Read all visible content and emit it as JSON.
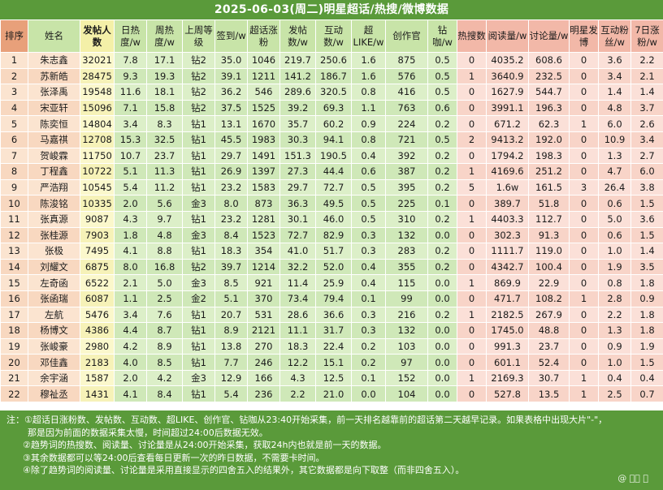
{
  "title": "2025-06-03(周二)明星超话/热搜/微博数据",
  "headers": {
    "rank": "排序",
    "name": "姓名",
    "posters": "发帖人数",
    "day_heat": "日热度/w",
    "week_heat": "周热度/w",
    "last_week_level": "上周等级",
    "checkin": "签到/w",
    "super_gain": "超话涨粉",
    "posts": "发帖数/w",
    "interact": "互动数/w",
    "super_like": "超LIKE/w",
    "creators": "创作官",
    "diamond": "钻咖/w",
    "hot_search": "热搜数",
    "reads": "阅读量/w",
    "discussion": "讨论量/w",
    "star_posts": "明星发博",
    "interact_fans": "互动粉丝/w",
    "seven_day": "7日涨粉/w"
  },
  "rows": [
    [
      "1",
      "朱志鑫",
      "32021",
      "7.8",
      "17.1",
      "钻2",
      "35.0",
      "1046",
      "219.7",
      "250.6",
      "1.6",
      "875",
      "0.5",
      "0",
      "4035.2",
      "608.6",
      "0",
      "3.6",
      "2.2"
    ],
    [
      "2",
      "苏新皓",
      "28475",
      "9.3",
      "19.3",
      "钻2",
      "39.1",
      "1211",
      "141.2",
      "186.7",
      "1.6",
      "576",
      "0.5",
      "1",
      "3640.9",
      "232.5",
      "0",
      "3.4",
      "2.1"
    ],
    [
      "3",
      "张泽禹",
      "19548",
      "11.6",
      "18.1",
      "钻2",
      "36.2",
      "546",
      "289.6",
      "320.5",
      "0.8",
      "416",
      "0.5",
      "0",
      "1627.9",
      "544.7",
      "0",
      "1.4",
      "1.4"
    ],
    [
      "4",
      "宋亚轩",
      "15096",
      "7.1",
      "15.8",
      "钻2",
      "37.5",
      "1525",
      "39.2",
      "69.3",
      "1.1",
      "763",
      "0.6",
      "0",
      "3991.1",
      "196.3",
      "0",
      "4.8",
      "3.7"
    ],
    [
      "5",
      "陈奕恒",
      "14804",
      "3.4",
      "8.3",
      "钻1",
      "13.1",
      "1670",
      "35.7",
      "60.2",
      "0.9",
      "224",
      "0.2",
      "0",
      "671.2",
      "62.3",
      "1",
      "6.0",
      "2.6"
    ],
    [
      "6",
      "马嘉祺",
      "12708",
      "15.3",
      "32.5",
      "钻1",
      "45.5",
      "1983",
      "30.3",
      "94.1",
      "0.8",
      "721",
      "0.5",
      "2",
      "9413.2",
      "192.0",
      "0",
      "10.9",
      "3.4"
    ],
    [
      "7",
      "贺峻霖",
      "11750",
      "10.7",
      "23.7",
      "钻1",
      "29.7",
      "1491",
      "151.3",
      "190.5",
      "0.4",
      "392",
      "0.2",
      "0",
      "1794.2",
      "198.3",
      "0",
      "1.3",
      "2.7"
    ],
    [
      "8",
      "丁程鑫",
      "10722",
      "5.1",
      "11.3",
      "钻1",
      "26.9",
      "1397",
      "27.3",
      "44.4",
      "0.6",
      "387",
      "0.2",
      "1",
      "4169.6",
      "251.2",
      "0",
      "4.7",
      "6.0"
    ],
    [
      "9",
      "严浩翔",
      "10545",
      "5.4",
      "11.2",
      "钻1",
      "23.2",
      "1583",
      "29.7",
      "72.7",
      "0.5",
      "395",
      "0.2",
      "5",
      "1.6w",
      "161.5",
      "3",
      "26.4",
      "3.8"
    ],
    [
      "10",
      "陈浚铭",
      "10335",
      "2.0",
      "5.6",
      "金3",
      "8.0",
      "873",
      "36.3",
      "49.5",
      "0.5",
      "225",
      "0.1",
      "0",
      "389.7",
      "51.8",
      "0",
      "0.6",
      "1.5"
    ],
    [
      "11",
      "张真源",
      "9087",
      "4.3",
      "9.7",
      "钻1",
      "23.2",
      "1281",
      "30.1",
      "46.0",
      "0.5",
      "310",
      "0.2",
      "1",
      "4403.3",
      "112.7",
      "0",
      "5.0",
      "3.6"
    ],
    [
      "12",
      "张桂源",
      "7903",
      "1.8",
      "4.8",
      "金3",
      "8.4",
      "1523",
      "72.7",
      "82.9",
      "0.3",
      "132",
      "0.0",
      "0",
      "302.3",
      "91.3",
      "0",
      "0.6",
      "1.5"
    ],
    [
      "13",
      "张极",
      "7495",
      "4.1",
      "8.8",
      "钻1",
      "18.3",
      "354",
      "41.0",
      "51.7",
      "0.3",
      "283",
      "0.2",
      "0",
      "1111.7",
      "119.0",
      "0",
      "1.0",
      "1.4"
    ],
    [
      "14",
      "刘耀文",
      "6875",
      "8.0",
      "16.8",
      "钻2",
      "39.7",
      "1214",
      "32.2",
      "52.0",
      "0.4",
      "355",
      "0.2",
      "0",
      "4342.7",
      "100.4",
      "0",
      "1.9",
      "3.5"
    ],
    [
      "15",
      "左奇函",
      "6522",
      "2.1",
      "5.0",
      "金3",
      "8.5",
      "921",
      "11.4",
      "25.9",
      "0.4",
      "115",
      "0.0",
      "1",
      "869.9",
      "22.9",
      "0",
      "0.8",
      "1.8"
    ],
    [
      "16",
      "张函瑞",
      "6087",
      "1.1",
      "2.5",
      "金2",
      "5.1",
      "370",
      "73.4",
      "79.4",
      "0.1",
      "99",
      "0.0",
      "0",
      "471.7",
      "108.2",
      "1",
      "2.8",
      "0.9"
    ],
    [
      "17",
      "左航",
      "5476",
      "3.4",
      "7.6",
      "钻1",
      "20.7",
      "531",
      "28.6",
      "36.6",
      "0.3",
      "216",
      "0.2",
      "1",
      "2182.5",
      "267.9",
      "0",
      "2.2",
      "1.8"
    ],
    [
      "18",
      "杨博文",
      "4386",
      "4.4",
      "8.7",
      "钻1",
      "8.9",
      "2121",
      "11.1",
      "31.7",
      "0.3",
      "132",
      "0.0",
      "0",
      "1745.0",
      "48.8",
      "0",
      "1.3",
      "1.8"
    ],
    [
      "19",
      "张峻豪",
      "2980",
      "4.2",
      "8.9",
      "钻1",
      "13.8",
      "270",
      "18.3",
      "22.4",
      "0.2",
      "103",
      "0.0",
      "0",
      "991.3",
      "23.7",
      "0",
      "0.9",
      "1.9"
    ],
    [
      "20",
      "邓佳鑫",
      "2183",
      "4.0",
      "8.5",
      "钻1",
      "7.7",
      "246",
      "12.2",
      "15.1",
      "0.2",
      "97",
      "0.0",
      "0",
      "601.1",
      "52.4",
      "0",
      "1.0",
      "1.5"
    ],
    [
      "21",
      "余宇涵",
      "1587",
      "2.0",
      "4.2",
      "金3",
      "12.9",
      "166",
      "4.3",
      "12.5",
      "0.1",
      "152",
      "0.0",
      "1",
      "2169.3",
      "30.7",
      "1",
      "0.4",
      "0.4"
    ],
    [
      "22",
      "穆祉丞",
      "1431",
      "4.1",
      "8.4",
      "钻1",
      "5.4",
      "236",
      "2.2",
      "21.0",
      "0.0",
      "104",
      "0.0",
      "0",
      "527.8",
      "13.5",
      "1",
      "2.5",
      "0.7"
    ]
  ],
  "highlights": {
    "0": {
      "2": "blue",
      "6": "blue"
    },
    "1": {
      "6": "blue",
      "14": "blue",
      "15": "purple"
    },
    "2": {
      "3": "red"
    },
    "3": {
      "2": "blue",
      "6": "blue"
    },
    "4": {
      "3": "blue",
      "6": "blue"
    },
    "5": {
      "2": "blue",
      "6": "blue"
    },
    "6": {
      "6": "blue"
    },
    "7": {
      "2": "blue",
      "6": "blue",
      "15": "purple",
      "18": "red"
    },
    "8": {
      "2": "blue"
    },
    "9": {
      "2": "blue",
      "3": "blue",
      "6": "blue"
    },
    "10": {
      "6": "blue"
    },
    "11": {
      "2": "blue",
      "3": "blue",
      "6": "blue"
    },
    "12": {
      "6": "blue"
    },
    "13": {
      "2": "blue",
      "6": "blue"
    },
    "14": {
      "2": "blue",
      "3": "blue",
      "6": "blue",
      "14": "blue"
    },
    "15": {
      "3": "blue",
      "6": "blue"
    },
    "16": {
      "2": "blue",
      "6": "blue",
      "15": "purple"
    },
    "17": {
      "2": "blue",
      "6": "blue",
      "15": "blue"
    },
    "18": {
      "2": "blue",
      "6": "blue"
    },
    "19": {
      "2": "blue"
    },
    "20": {
      "2": "blue",
      "14": "purple"
    },
    "21": {
      "2": "blue",
      "14": "blue"
    }
  },
  "notes": [
    "注：①超话日涨粉数、发帖数、互动数、超LIKE、创作官、钻咖从23:40开始采集，前一天排名越靠前的超话第二天越早记录。如果表格中出现大片\"-\"，",
    "那是因为前面的数据采集太慢，时间超过24:00后数据无效。",
    "②趋势词的热搜数、阅读量、讨论量是从24:00开始采集，获取24h内也就是前一天的数据。",
    "③其余数据都可以等24:00后查看每日更新一次的昨日数据，不需要卡时间。",
    "④除了趋势词的阅读量、讨论量是采用直接显示的四舍五入的结果外，其它数据都是向下取整（而非四舍五入）。"
  ],
  "watermark": "@ ⃝⃝ ⃝"
}
